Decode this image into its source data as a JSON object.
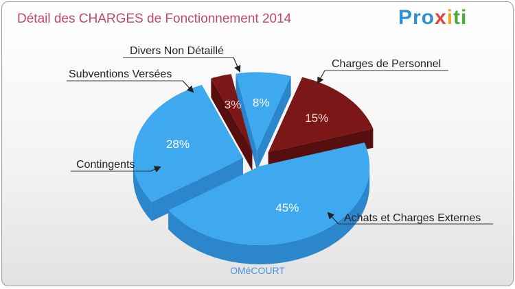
{
  "title": "Détail des CHARGES de Fonctionnement 2014",
  "logo": {
    "p1": "Pro",
    "p2": "x",
    "p3": "i",
    "p4": "ti"
  },
  "footer": "OMéCOURT",
  "colors": {
    "blue": "#3fa9f0",
    "blue_side": "#2c86cc",
    "red": "#7b1717",
    "red_side": "#560e0e",
    "title": "#c1486b"
  },
  "chart_data": {
    "type": "pie",
    "title": "Détail des CHARGES de Fonctionnement 2014",
    "slices": [
      {
        "label": "Charges de Personnel",
        "value": 15,
        "pct_label": "15%"
      },
      {
        "label": "Achats et Charges Externes",
        "value": 45,
        "pct_label": "45%"
      },
      {
        "label": "Contingents",
        "value": 28,
        "pct_label": "28%"
      },
      {
        "label": "Subventions Versées",
        "value": 3,
        "pct_label": "3%"
      },
      {
        "label": "Divers Non Détaillé",
        "value": 8,
        "pct_label": "8%"
      }
    ]
  }
}
